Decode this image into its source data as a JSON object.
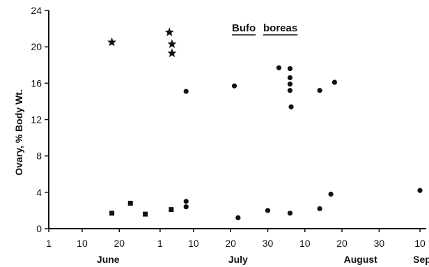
{
  "chart_data": {
    "type": "scatter",
    "title_parts": [
      "Bufo",
      "boreas"
    ],
    "ylabel": "Ovary,   % Body Wt.",
    "ylim": [
      0,
      24
    ],
    "yticks": [
      0,
      4,
      8,
      12,
      16,
      20,
      24
    ],
    "x_ticks": [
      {
        "day": 1,
        "label": "1"
      },
      {
        "day": 10,
        "label": "10"
      },
      {
        "day": 20,
        "label": "20"
      },
      {
        "day": 31,
        "label": "1"
      },
      {
        "day": 40,
        "label": "10"
      },
      {
        "day": 50,
        "label": "20"
      },
      {
        "day": 60,
        "label": "30"
      },
      {
        "day": 70,
        "label": "10"
      },
      {
        "day": 80,
        "label": "20"
      },
      {
        "day": 90,
        "label": "30"
      },
      {
        "day": 101,
        "label": "10"
      }
    ],
    "months": [
      {
        "day": 17,
        "label": "June"
      },
      {
        "day": 52,
        "label": "July"
      },
      {
        "day": 85,
        "label": "August"
      },
      {
        "day": 102,
        "label": "Sept"
      }
    ],
    "series": [
      {
        "marker": "star",
        "points": [
          {
            "x": 18,
            "y": 20.5
          },
          {
            "x": 33.5,
            "y": 21.6
          },
          {
            "x": 34.2,
            "y": 20.3
          },
          {
            "x": 34.2,
            "y": 19.3
          }
        ]
      },
      {
        "marker": "square",
        "points": [
          {
            "x": 18,
            "y": 1.7
          },
          {
            "x": 23,
            "y": 2.8
          },
          {
            "x": 27,
            "y": 1.6
          },
          {
            "x": 34,
            "y": 2.1
          }
        ]
      },
      {
        "marker": "circle",
        "points": [
          {
            "x": 38,
            "y": 15.1
          },
          {
            "x": 51,
            "y": 15.7
          },
          {
            "x": 63,
            "y": 17.7
          },
          {
            "x": 66,
            "y": 17.6
          },
          {
            "x": 66,
            "y": 16.6
          },
          {
            "x": 66,
            "y": 15.9
          },
          {
            "x": 66,
            "y": 15.2
          },
          {
            "x": 66.3,
            "y": 13.4
          },
          {
            "x": 74,
            "y": 15.2
          },
          {
            "x": 78,
            "y": 16.1
          },
          {
            "x": 38,
            "y": 3.0
          },
          {
            "x": 38,
            "y": 2.4
          },
          {
            "x": 52,
            "y": 1.2
          },
          {
            "x": 60,
            "y": 2.0
          },
          {
            "x": 66,
            "y": 1.7
          },
          {
            "x": 74,
            "y": 2.2
          },
          {
            "x": 77,
            "y": 3.8
          },
          {
            "x": 101,
            "y": 4.2
          }
        ]
      }
    ]
  }
}
